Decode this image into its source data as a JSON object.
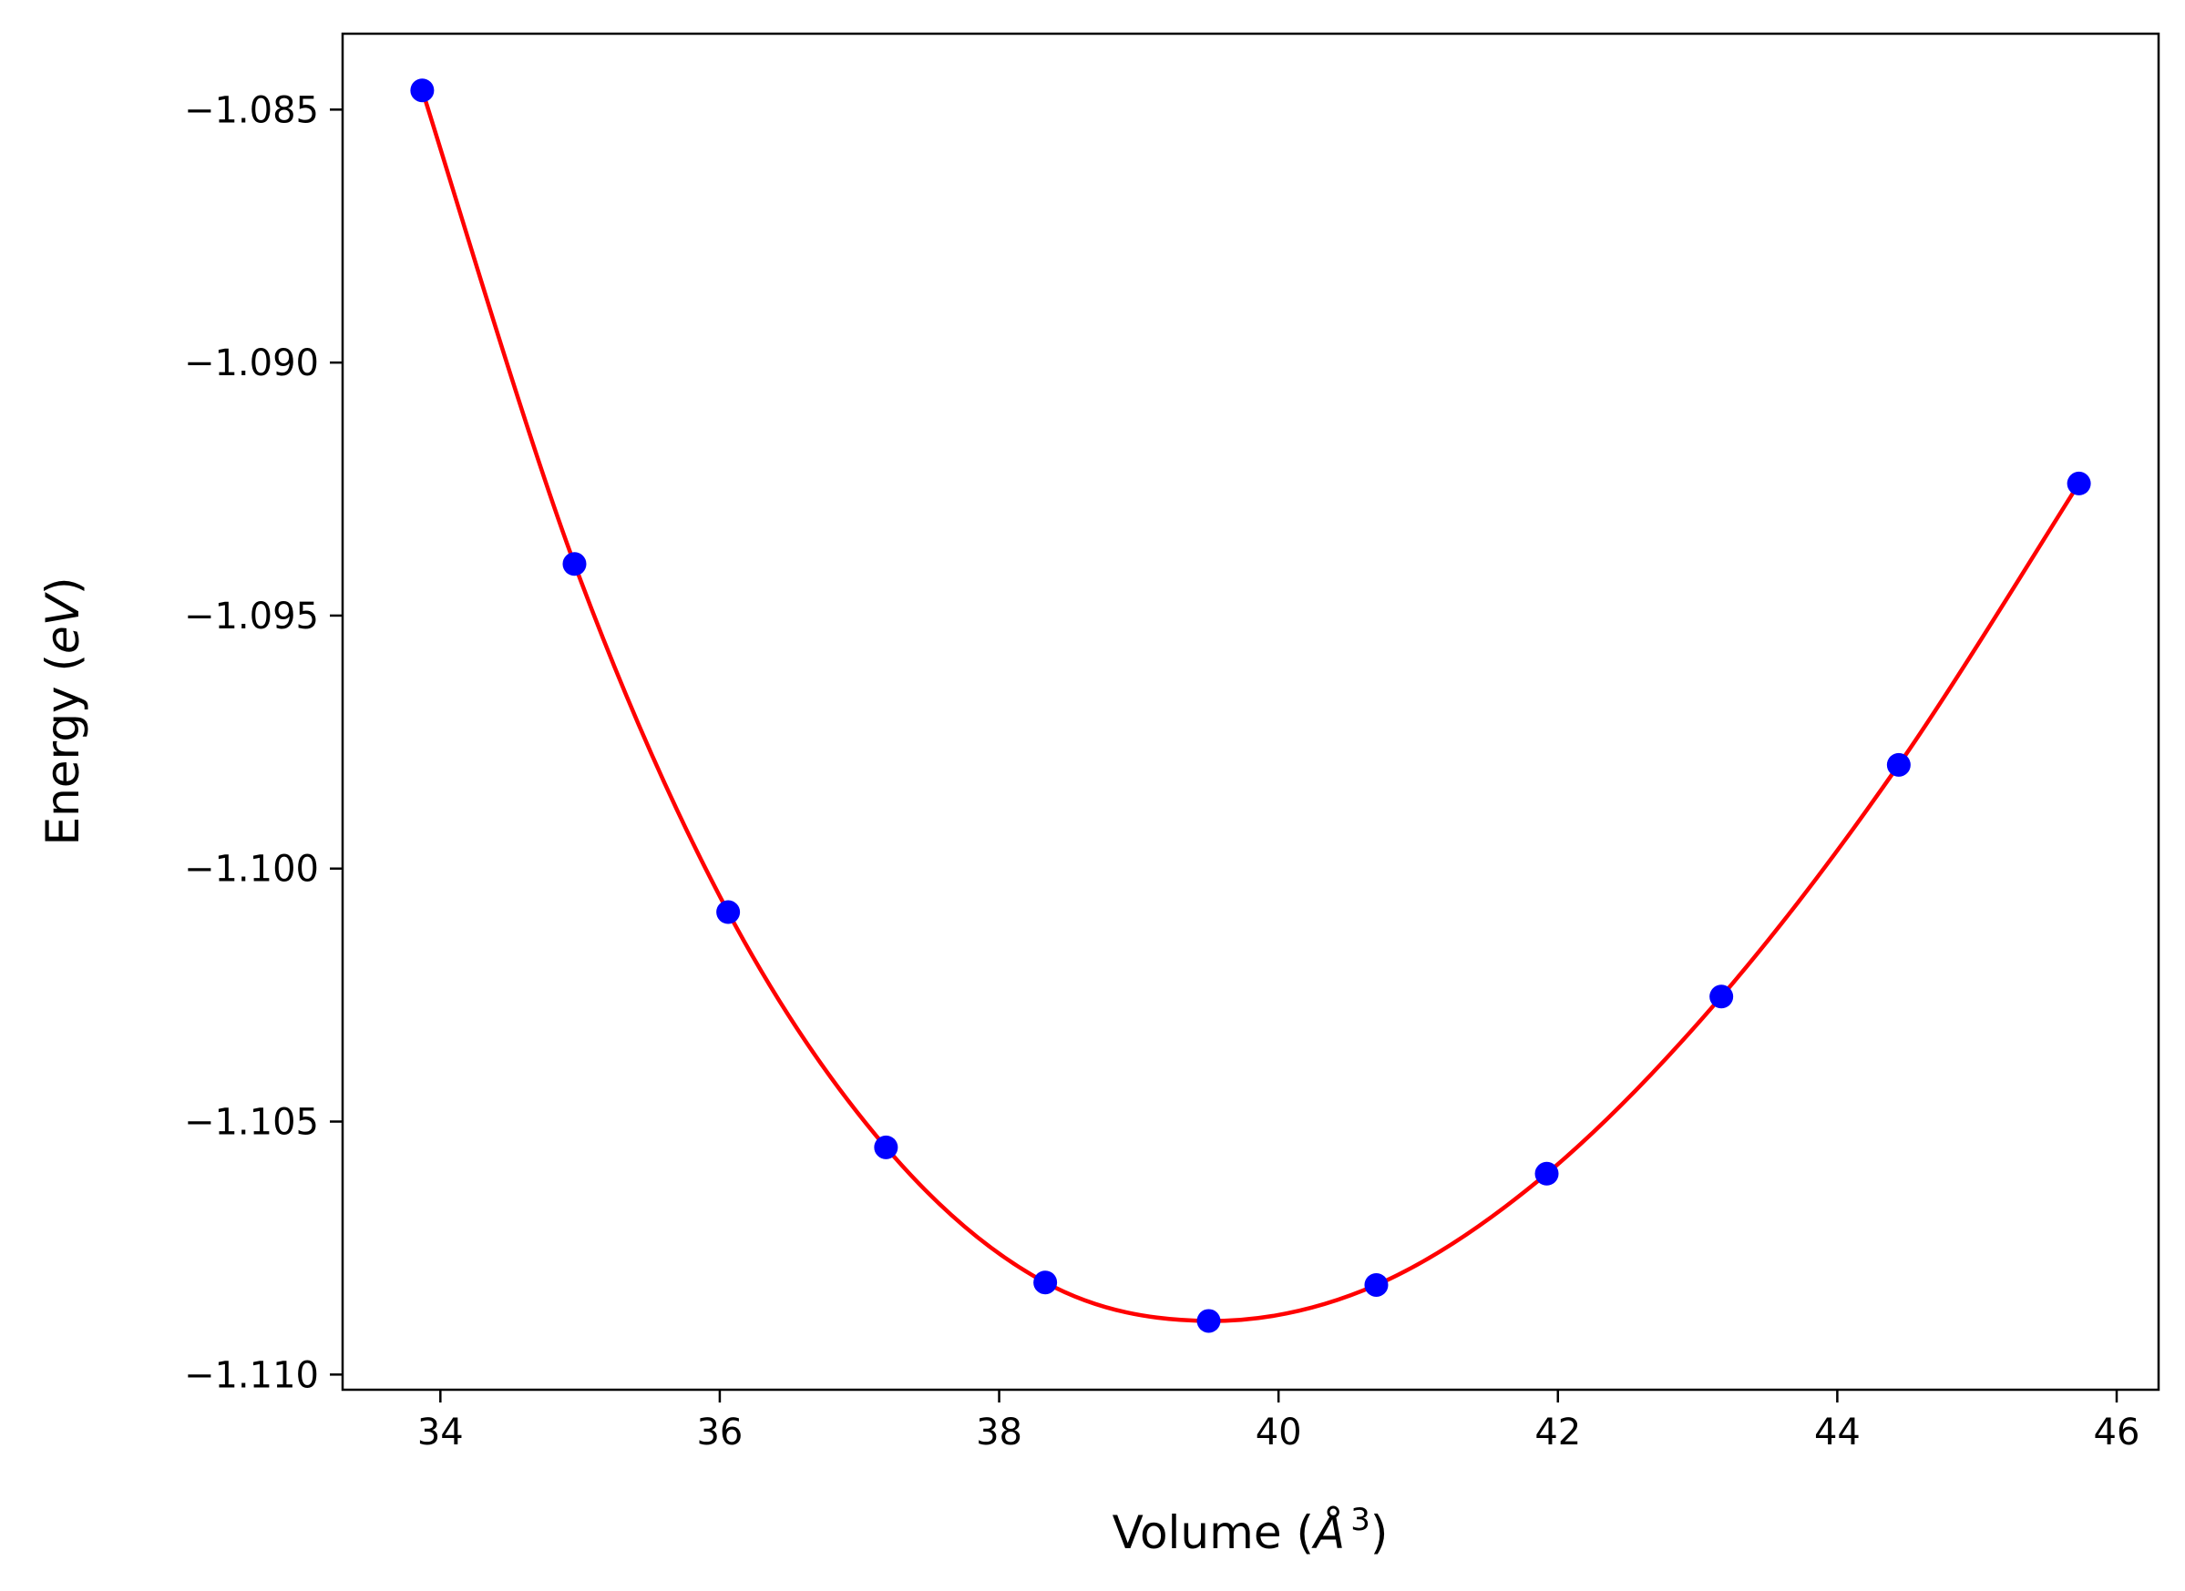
{
  "chart_data": {
    "type": "line",
    "title": "",
    "xlabel": {
      "prefix": "Volume (",
      "symbol": "Å",
      "sup": "3",
      "suffix": ")"
    },
    "ylabel": {
      "prefix": "Energy (",
      "unit": "eV",
      "suffix": ")"
    },
    "xlim": [
      33.3,
      46.3
    ],
    "ylim": [
      -1.1103,
      -1.0835
    ],
    "x_ticks": [
      34,
      36,
      38,
      40,
      42,
      44,
      46
    ],
    "x_tick_labels": [
      "34",
      "36",
      "38",
      "40",
      "42",
      "44",
      "46"
    ],
    "y_ticks": [
      -1.085,
      -1.09,
      -1.095,
      -1.1,
      -1.105,
      -1.11
    ],
    "y_tick_labels": [
      "−1.085",
      "−1.090",
      "−1.095",
      "−1.100",
      "−1.105",
      "−1.110"
    ],
    "grid": false,
    "series": [
      {
        "kind": "scatter",
        "color": "#0000ff",
        "points": [
          {
            "x": 33.87,
            "y": -1.08462
          },
          {
            "x": 34.96,
            "y": -1.09398
          },
          {
            "x": 36.06,
            "y": -1.10086
          },
          {
            "x": 37.19,
            "y": -1.10551
          },
          {
            "x": 38.33,
            "y": -1.10818
          },
          {
            "x": 39.5,
            "y": -1.10894
          },
          {
            "x": 40.7,
            "y": -1.10823
          },
          {
            "x": 41.92,
            "y": -1.10603
          },
          {
            "x": 43.17,
            "y": -1.10253
          },
          {
            "x": 44.44,
            "y": -1.09795
          },
          {
            "x": 45.73,
            "y": -1.09239
          }
        ]
      },
      {
        "kind": "line",
        "color": "#ff0000",
        "interpolate_through_points": true
      }
    ]
  }
}
